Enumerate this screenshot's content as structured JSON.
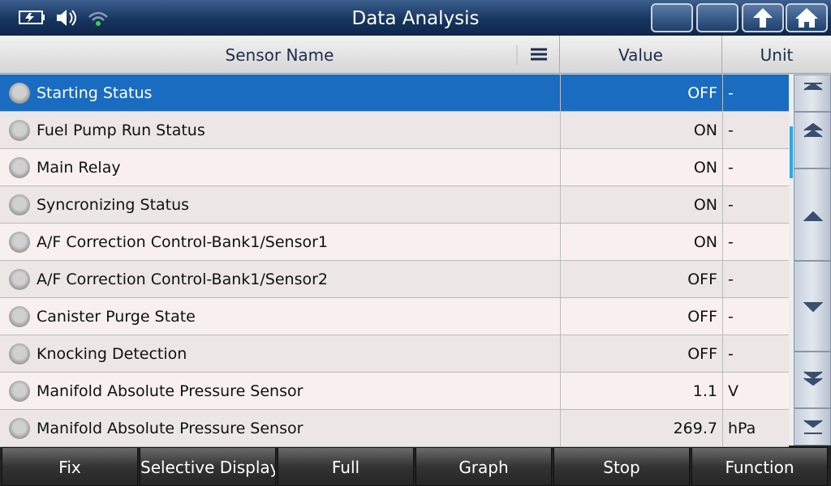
{
  "header": {
    "title": "Data Analysis"
  },
  "table": {
    "columns": [
      "Sensor Name",
      "Value",
      "Unit"
    ],
    "rows": [
      [
        "Starting Status",
        "OFF",
        "-"
      ],
      [
        "Fuel Pump Run Status",
        "ON",
        "-"
      ],
      [
        "Main Relay",
        "ON",
        "-"
      ],
      [
        "Syncronizing Status",
        "ON",
        "-"
      ],
      [
        "A/F Correction Control-Bank1/Sensor1",
        "ON",
        "-"
      ],
      [
        "A/F Correction Control-Bank1/Sensor2",
        "OFF",
        "-"
      ],
      [
        "Canister Purge State",
        "OFF",
        "-"
      ],
      [
        "Knocking Detection",
        "OFF",
        "-"
      ],
      [
        "Manifold Absolute Pressure Sensor",
        "1.1",
        "V"
      ],
      [
        "Manifold Absolute Pressure Sensor",
        "269.7",
        "hPa"
      ]
    ]
  },
  "buttons": [
    "Fix",
    "Selective Display",
    "Full",
    "Graph",
    "Stop",
    "Function"
  ]
}
